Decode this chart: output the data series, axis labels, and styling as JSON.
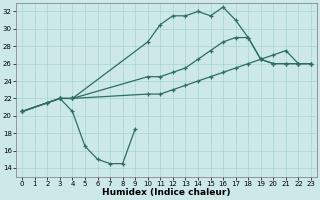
{
  "xlabel": "Humidex (Indice chaleur)",
  "xlim": [
    -0.5,
    23.5
  ],
  "ylim": [
    13,
    33
  ],
  "yticks": [
    14,
    16,
    18,
    20,
    22,
    24,
    26,
    28,
    30,
    32
  ],
  "xticks": [
    0,
    1,
    2,
    3,
    4,
    5,
    6,
    7,
    8,
    9,
    10,
    11,
    12,
    13,
    14,
    15,
    16,
    17,
    18,
    19,
    20,
    21,
    22,
    23
  ],
  "bg_color": "#cde8e8",
  "grid_color": "#a8d4d4",
  "line_color": "#2d6e63",
  "lines": [
    {
      "x": [
        0,
        2,
        3,
        4,
        5,
        6,
        7,
        8,
        9
      ],
      "y": [
        20.5,
        21.5,
        22.0,
        20.5,
        16.5,
        15.0,
        14.5,
        14.5,
        18.5
      ]
    },
    {
      "x": [
        0,
        2,
        3,
        4,
        10,
        11,
        12,
        13,
        14,
        15,
        16,
        17,
        18,
        19,
        20,
        21,
        22,
        23
      ],
      "y": [
        20.5,
        21.5,
        22.0,
        22.0,
        28.5,
        30.5,
        31.5,
        31.5,
        32.0,
        31.5,
        32.5,
        31.0,
        29.0,
        26.5,
        26.0,
        26.0,
        26.0,
        26.0
      ]
    },
    {
      "x": [
        0,
        3,
        4,
        10,
        11,
        12,
        13,
        14,
        15,
        16,
        17,
        18,
        19,
        20,
        21,
        22,
        23
      ],
      "y": [
        20.5,
        22.0,
        22.0,
        24.5,
        24.5,
        25.0,
        25.5,
        26.5,
        27.5,
        28.5,
        29.0,
        29.0,
        26.5,
        26.0,
        26.0,
        26.0,
        26.0
      ]
    },
    {
      "x": [
        0,
        3,
        4,
        10,
        11,
        12,
        13,
        14,
        15,
        16,
        17,
        18,
        19,
        20,
        21,
        22,
        23
      ],
      "y": [
        20.5,
        22.0,
        22.0,
        22.5,
        22.5,
        23.0,
        23.5,
        24.0,
        24.5,
        25.0,
        25.5,
        26.0,
        26.5,
        27.0,
        27.5,
        26.0,
        26.0
      ]
    }
  ]
}
